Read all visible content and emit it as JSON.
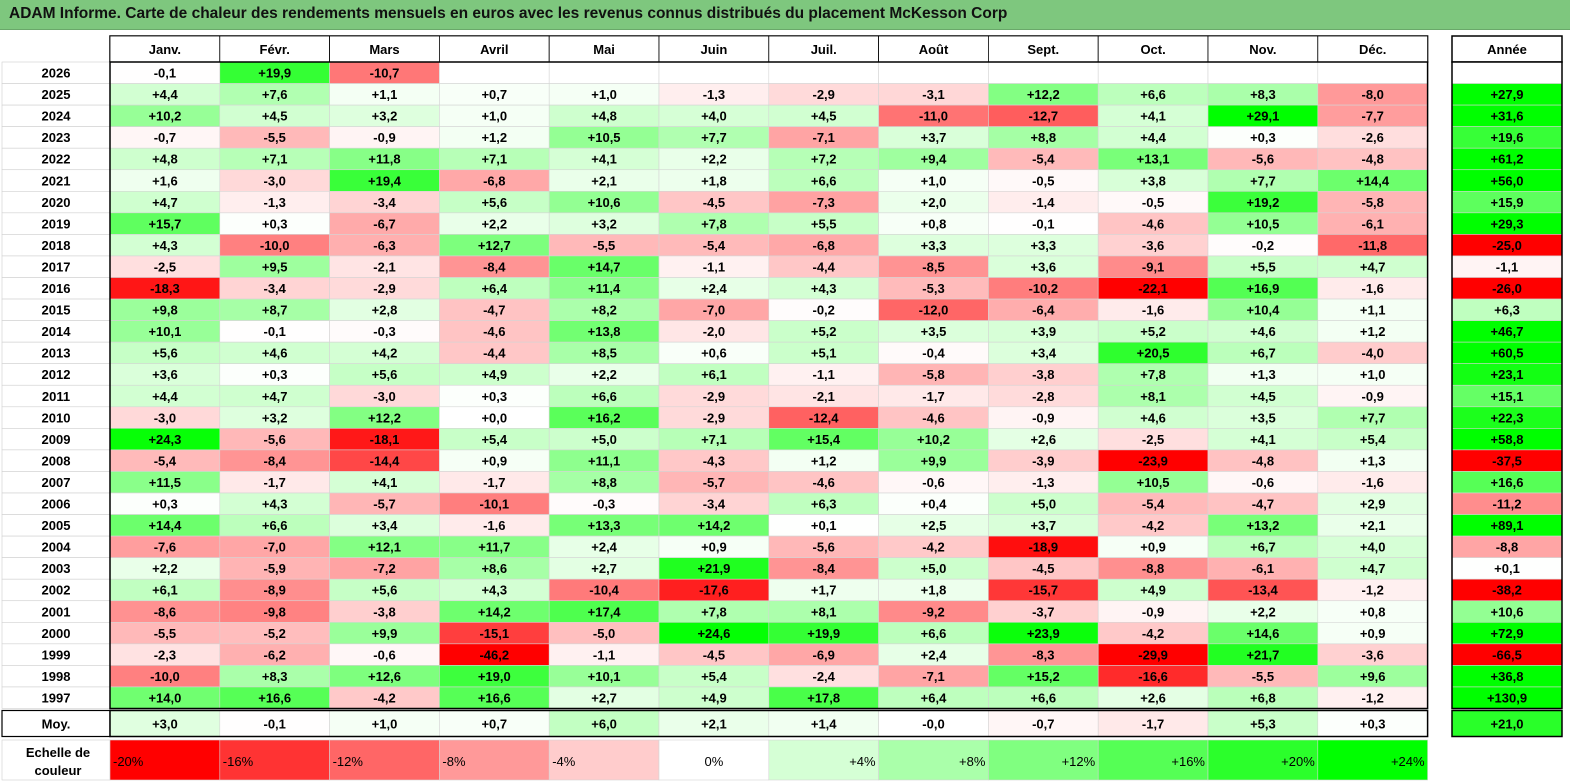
{
  "title": "ADAM Informe. Carte de chaleur des rendements mensuels en euros avec les revenus connus distribués du placement McKesson Corp",
  "chart_data": {
    "type": "heatmap",
    "months": [
      "Janv.",
      "Févr.",
      "Mars",
      "Avril",
      "Mai",
      "Juin",
      "Juil.",
      "Août",
      "Sept.",
      "Oct.",
      "Nov.",
      "Déc."
    ],
    "year_header": "Année",
    "rows": [
      {
        "label": "2026",
        "values": [
          "-0,1",
          "+19,9",
          "-10,7",
          "",
          "",
          "",
          "",
          "",
          "",
          "",
          "",
          ""
        ],
        "year": ""
      },
      {
        "label": "2025",
        "values": [
          "+4,4",
          "+7,6",
          "+1,1",
          "+0,7",
          "+1,0",
          "-1,3",
          "-2,9",
          "-3,1",
          "+12,2",
          "+6,6",
          "+8,3",
          "-8,0"
        ],
        "year": "+27,9"
      },
      {
        "label": "2024",
        "values": [
          "+10,2",
          "+4,5",
          "+3,2",
          "+1,0",
          "+4,8",
          "+4,0",
          "+4,5",
          "-11,0",
          "-12,7",
          "+4,1",
          "+29,1",
          "-7,7"
        ],
        "year": "+31,6"
      },
      {
        "label": "2023",
        "values": [
          "-0,7",
          "-5,5",
          "-0,9",
          "+1,2",
          "+10,5",
          "+7,7",
          "-7,1",
          "+3,7",
          "+8,8",
          "+4,4",
          "+0,3",
          "-2,6"
        ],
        "year": "+19,6"
      },
      {
        "label": "2022",
        "values": [
          "+4,8",
          "+7,1",
          "+11,8",
          "+7,1",
          "+4,1",
          "+2,2",
          "+7,2",
          "+9,4",
          "-5,4",
          "+13,1",
          "-5,6",
          "-4,8"
        ],
        "year": "+61,2"
      },
      {
        "label": "2021",
        "values": [
          "+1,6",
          "-3,0",
          "+19,4",
          "-6,8",
          "+2,1",
          "+1,8",
          "+6,6",
          "+1,0",
          "-0,5",
          "+3,8",
          "+7,7",
          "+14,4"
        ],
        "year": "+56,0"
      },
      {
        "label": "2020",
        "values": [
          "+4,7",
          "-1,3",
          "-3,4",
          "+5,6",
          "+10,6",
          "-4,5",
          "-7,3",
          "+2,0",
          "-1,4",
          "-0,5",
          "+19,2",
          "-5,8"
        ],
        "year": "+15,9"
      },
      {
        "label": "2019",
        "values": [
          "+15,7",
          "+0,3",
          "-6,7",
          "+2,2",
          "+3,2",
          "+7,8",
          "+5,5",
          "+0,8",
          "-0,1",
          "-4,6",
          "+10,5",
          "-6,1"
        ],
        "year": "+29,3"
      },
      {
        "label": "2018",
        "values": [
          "+4,3",
          "-10,0",
          "-6,3",
          "+12,7",
          "-5,5",
          "-5,4",
          "-6,8",
          "+3,3",
          "+3,3",
          "-3,6",
          "-0,2",
          "-11,8"
        ],
        "year": "-25,0"
      },
      {
        "label": "2017",
        "values": [
          "-2,5",
          "+9,5",
          "-2,1",
          "-8,4",
          "+14,7",
          "-1,1",
          "-4,4",
          "-8,5",
          "+3,6",
          "-9,1",
          "+5,5",
          "+4,7"
        ],
        "year": "-1,1"
      },
      {
        "label": "2016",
        "values": [
          "-18,3",
          "-3,4",
          "-2,9",
          "+6,4",
          "+11,4",
          "+2,4",
          "+4,3",
          "-5,3",
          "-10,2",
          "-22,1",
          "+16,9",
          "-1,6"
        ],
        "year": "-26,0"
      },
      {
        "label": "2015",
        "values": [
          "+9,8",
          "+8,7",
          "+2,8",
          "-4,7",
          "+8,2",
          "-7,0",
          "-0,2",
          "-12,0",
          "-6,4",
          "-1,6",
          "+10,4",
          "+1,1"
        ],
        "year": "+6,3"
      },
      {
        "label": "2014",
        "values": [
          "+10,1",
          "-0,1",
          "-0,3",
          "-4,6",
          "+13,8",
          "-2,0",
          "+5,2",
          "+3,5",
          "+3,9",
          "+5,2",
          "+4,6",
          "+1,2"
        ],
        "year": "+46,7"
      },
      {
        "label": "2013",
        "values": [
          "+5,6",
          "+4,6",
          "+4,2",
          "-4,4",
          "+8,5",
          "+0,6",
          "+5,1",
          "-0,4",
          "+3,4",
          "+20,5",
          "+6,7",
          "-4,0"
        ],
        "year": "+60,5"
      },
      {
        "label": "2012",
        "values": [
          "+3,6",
          "+0,3",
          "+5,6",
          "+4,9",
          "+2,2",
          "+6,1",
          "-1,1",
          "-5,8",
          "-3,8",
          "+7,8",
          "+1,3",
          "+1,0"
        ],
        "year": "+23,1"
      },
      {
        "label": "2011",
        "values": [
          "+4,4",
          "+4,7",
          "-3,0",
          "+0,3",
          "+6,6",
          "-2,9",
          "-2,1",
          "-1,7",
          "-2,8",
          "+8,1",
          "+4,5",
          "-0,9"
        ],
        "year": "+15,1"
      },
      {
        "label": "2010",
        "values": [
          "-3,0",
          "+3,2",
          "+12,2",
          "+0,0",
          "+16,2",
          "-2,9",
          "-12,4",
          "-4,6",
          "-0,9",
          "+4,6",
          "+3,5",
          "+7,7"
        ],
        "year": "+22,3"
      },
      {
        "label": "2009",
        "values": [
          "+24,3",
          "-5,6",
          "-18,1",
          "+5,4",
          "+5,0",
          "+7,1",
          "+15,4",
          "+10,2",
          "+2,6",
          "-2,5",
          "+4,1",
          "+5,4"
        ],
        "year": "+58,8"
      },
      {
        "label": "2008",
        "values": [
          "-5,4",
          "-8,4",
          "-14,4",
          "+0,9",
          "+11,1",
          "-4,3",
          "+1,2",
          "+9,9",
          "-3,9",
          "-23,9",
          "-4,8",
          "+1,3"
        ],
        "year": "-37,5"
      },
      {
        "label": "2007",
        "values": [
          "+11,5",
          "-1,7",
          "+4,1",
          "-1,7",
          "+8,8",
          "-5,7",
          "-4,6",
          "-0,6",
          "-1,3",
          "+10,5",
          "-0,6",
          "-1,6"
        ],
        "year": "+16,6"
      },
      {
        "label": "2006",
        "values": [
          "+0,3",
          "+4,3",
          "-5,7",
          "-10,1",
          "-0,3",
          "-3,4",
          "+6,3",
          "+0,4",
          "+5,0",
          "-5,4",
          "-4,7",
          "+2,9"
        ],
        "year": "-11,2"
      },
      {
        "label": "2005",
        "values": [
          "+14,4",
          "+6,6",
          "+3,4",
          "-1,6",
          "+13,3",
          "+14,2",
          "+0,1",
          "+2,5",
          "+3,7",
          "-4,2",
          "+13,2",
          "+2,1"
        ],
        "year": "+89,1"
      },
      {
        "label": "2004",
        "values": [
          "-7,6",
          "-7,0",
          "+12,1",
          "+11,7",
          "+2,4",
          "+0,9",
          "-5,6",
          "-4,2",
          "-18,9",
          "+0,9",
          "+6,7",
          "+4,0"
        ],
        "year": "-8,8"
      },
      {
        "label": "2003",
        "values": [
          "+2,2",
          "-5,9",
          "-7,2",
          "+8,6",
          "+2,7",
          "+21,9",
          "-8,4",
          "+5,0",
          "-4,5",
          "-8,8",
          "-6,1",
          "+4,7"
        ],
        "year": "+0,1"
      },
      {
        "label": "2002",
        "values": [
          "+6,1",
          "-8,9",
          "+5,6",
          "+4,3",
          "-10,4",
          "-17,6",
          "+1,7",
          "+1,8",
          "-15,7",
          "+4,9",
          "-13,4",
          "-1,2"
        ],
        "year": "-38,2"
      },
      {
        "label": "2001",
        "values": [
          "-8,6",
          "-9,8",
          "-3,8",
          "+14,2",
          "+17,4",
          "+7,8",
          "+8,1",
          "-9,2",
          "-3,7",
          "-0,9",
          "+2,2",
          "+0,8"
        ],
        "year": "+10,6"
      },
      {
        "label": "2000",
        "values": [
          "-5,5",
          "-5,2",
          "+9,9",
          "-15,1",
          "-5,0",
          "+24,6",
          "+19,9",
          "+6,6",
          "+23,9",
          "-4,2",
          "+14,6",
          "+0,9"
        ],
        "year": "+72,9"
      },
      {
        "label": "1999",
        "values": [
          "-2,3",
          "-6,2",
          "-0,6",
          "-46,2",
          "-1,1",
          "-4,5",
          "-6,9",
          "+2,4",
          "-8,3",
          "-29,9",
          "+21,7",
          "-3,6"
        ],
        "year": "-66,5"
      },
      {
        "label": "1998",
        "values": [
          "-10,0",
          "+8,3",
          "+12,6",
          "+19,0",
          "+10,1",
          "+5,4",
          "-2,4",
          "-7,1",
          "+15,2",
          "-16,6",
          "-5,5",
          "+9,6"
        ],
        "year": "+36,8"
      },
      {
        "label": "1997",
        "values": [
          "+14,0",
          "+16,6",
          "-4,2",
          "+16,6",
          "+2,7",
          "+4,9",
          "+17,8",
          "+6,4",
          "+6,6",
          "+2,6",
          "+6,8",
          "-1,2"
        ],
        "year": "+130,9"
      }
    ],
    "average_row": {
      "label": "Moy.",
      "values": [
        "+3,0",
        "-0,1",
        "+1,0",
        "+0,7",
        "+6,0",
        "+2,1",
        "+1,4",
        "-0,0",
        "-0,7",
        "-1,7",
        "+5,3",
        "+0,3"
      ],
      "year": "+21,0"
    },
    "color_scale": {
      "title_line1": "Echelle de",
      "title_line2": "couleur",
      "stops": [
        "-20%",
        "-16%",
        "-12%",
        "-8%",
        "-4%",
        "0%",
        "+4%",
        "+8%",
        "+12%",
        "+16%",
        "+20%",
        "+24%"
      ],
      "stop_values": [
        -20,
        -16,
        -12,
        -8,
        -4,
        0,
        4,
        8,
        12,
        16,
        20,
        24
      ]
    },
    "colors": {
      "negative_max": "#ff0000",
      "neutral": "#ffffff",
      "positive_max": "#00ff00",
      "title_bar": "#7ec77e"
    }
  }
}
